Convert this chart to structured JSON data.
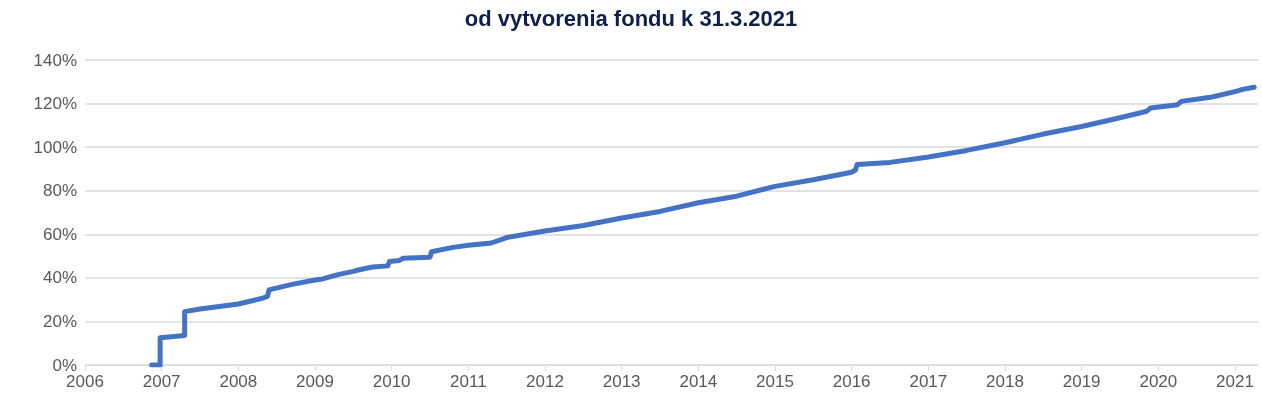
{
  "chart_data": {
    "type": "line",
    "title": "od vytvorenia fondu k 31.3.2021",
    "x": [
      2006.87,
      2006.98,
      2006.98,
      2007.3,
      2007.3,
      2007.5,
      2008.0,
      2008.3,
      2008.38,
      2008.4,
      2008.7,
      2009.0,
      2009.1,
      2009.3,
      2009.5,
      2009.55,
      2009.75,
      2009.95,
      2009.97,
      2010.1,
      2010.15,
      2010.5,
      2010.52,
      2010.8,
      2011.0,
      2011.3,
      2011.5,
      2012.0,
      2012.5,
      2013.0,
      2013.5,
      2014.0,
      2014.5,
      2015.0,
      2015.5,
      2016.0,
      2016.05,
      2016.07,
      2016.5,
      2017.0,
      2017.5,
      2018.0,
      2018.5,
      2019.0,
      2019.5,
      2019.85,
      2019.9,
      2020.25,
      2020.3,
      2020.7,
      2021.0,
      2021.1,
      2021.25
    ],
    "series": [
      {
        "color": "#4472c4",
        "values": [
          0,
          0,
          12.5,
          13.5,
          24.5,
          25.7,
          28,
          30.5,
          31.5,
          34.5,
          37,
          39,
          39.5,
          41.5,
          43,
          43.5,
          45,
          45.5,
          47.5,
          48,
          49,
          49.5,
          52,
          54,
          55,
          56,
          58.5,
          61.5,
          64,
          67.5,
          70.5,
          74.5,
          77.5,
          82,
          85,
          88.5,
          89.5,
          92,
          93,
          95.5,
          98.5,
          102,
          106,
          109.5,
          113.5,
          116.5,
          118,
          119.5,
          121,
          123,
          125.5,
          126.5,
          127.5
        ]
      }
    ],
    "xlim": [
      2006,
      2021.3
    ],
    "xticks": [
      2006,
      2007,
      2008,
      2009,
      2010,
      2011,
      2012,
      2013,
      2014,
      2015,
      2016,
      2017,
      2018,
      2019,
      2020,
      2021
    ],
    "ylim": [
      0,
      140
    ],
    "yticks": [
      {
        "value": 0,
        "label": "0%"
      },
      {
        "value": 20,
        "label": "20%"
      },
      {
        "value": 40,
        "label": "40%"
      },
      {
        "value": 60,
        "label": "60%"
      },
      {
        "value": 80,
        "label": "80%"
      },
      {
        "value": 100,
        "label": "100%"
      },
      {
        "value": 120,
        "label": "120%"
      },
      {
        "value": 140,
        "label": "140%"
      }
    ],
    "grid": "y",
    "marker": "none",
    "line_style": "solid"
  }
}
